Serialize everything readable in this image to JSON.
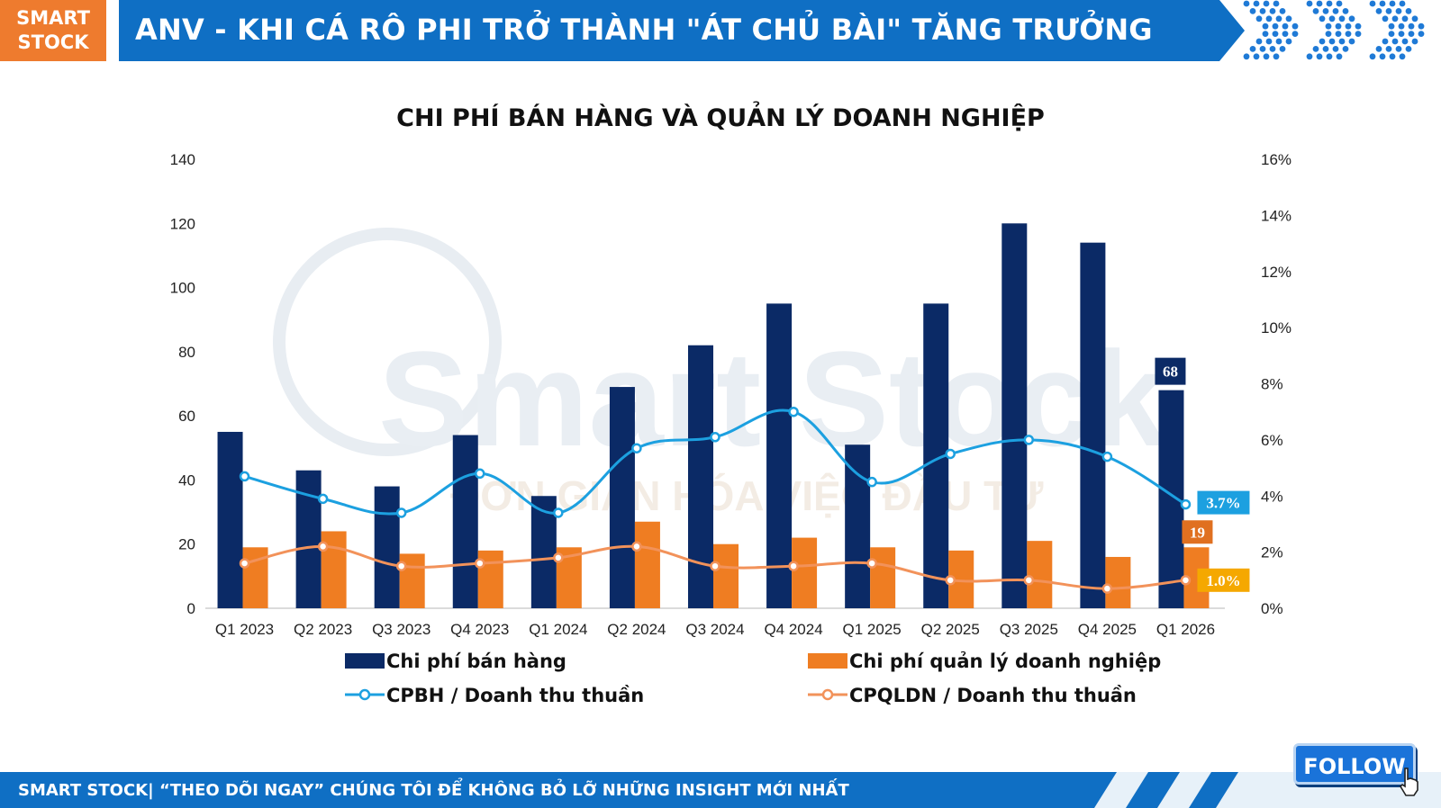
{
  "header": {
    "logo_line1": "SMART",
    "logo_line2": "STOCK",
    "title": "ANV - KHI CÁ RÔ PHI TRỞ THÀNH \"ÁT CHỦ BÀI\" TĂNG TRƯỞNG"
  },
  "watermark": {
    "main": "Smart Stock",
    "tagline": "ĐƠN GIẢN HÓA VIỆC ĐẦU TƯ"
  },
  "chart_data": {
    "type": "bar",
    "title": "CHI PHÍ BÁN HÀNG VÀ QUẢN LÝ DOANH NGHIỆP",
    "categories": [
      "Q1 2023",
      "Q2 2023",
      "Q3 2023",
      "Q4 2023",
      "Q1 2024",
      "Q2 2024",
      "Q3 2024",
      "Q4 2024",
      "Q1 2025",
      "Q2 2025",
      "Q3 2025",
      "Q4 2025",
      "Q1 2026"
    ],
    "series": [
      {
        "name": "Chi phí bán hàng",
        "kind": "bar",
        "axis": "left",
        "color": "#0b2a66",
        "values": [
          55,
          43,
          38,
          54,
          35,
          69,
          82,
          95,
          51,
          95,
          120,
          114,
          68
        ]
      },
      {
        "name": "Chi phí quản lý doanh nghiệp",
        "kind": "bar",
        "axis": "left",
        "color": "#ef7d22",
        "values": [
          19,
          24,
          17,
          18,
          19,
          27,
          20,
          22,
          19,
          18,
          21,
          16,
          19
        ]
      },
      {
        "name": "CPBH / Doanh thu thuần",
        "kind": "line",
        "axis": "right",
        "color": "#1ca0e0",
        "values": [
          4.7,
          3.9,
          3.4,
          4.8,
          3.4,
          5.7,
          6.1,
          7.0,
          4.5,
          5.5,
          6.0,
          5.4,
          3.7
        ]
      },
      {
        "name": "CPQLDN / Doanh thu thuần",
        "kind": "line",
        "axis": "right",
        "color": "#f2925a",
        "values": [
          1.6,
          2.2,
          1.5,
          1.6,
          1.8,
          2.2,
          1.5,
          1.5,
          1.6,
          1.0,
          1.0,
          0.7,
          1.0
        ]
      }
    ],
    "y_left": {
      "min": 0,
      "max": 140,
      "ticks": [
        "0",
        "20",
        "40",
        "60",
        "80",
        "100",
        "120",
        "140"
      ]
    },
    "y_right": {
      "min": 0,
      "max": 16,
      "ticks": [
        "0%",
        "2%",
        "4%",
        "6%",
        "8%",
        "10%",
        "12%",
        "14%",
        "16%"
      ]
    },
    "data_labels": {
      "sell_last": "68",
      "admin_last": "19",
      "sell_ratio_last": "3.7%",
      "admin_ratio_last": "1.0%"
    },
    "label_colors": {
      "sell_last": "#0b2a66",
      "admin_last": "#e07020",
      "sell_ratio_last": "#1ca0e0",
      "admin_ratio_last": "#f5a800"
    },
    "grid": false,
    "legend_position": "bottom"
  },
  "footer": {
    "text": "SMART STOCK| “THEO DÕI NGAY” CHÚNG TÔI ĐỂ KHÔNG BỎ LỠ NHỮNG INSIGHT MỚI NHẤT",
    "follow_label": "FOLLOW"
  },
  "icons": {
    "cursor": "hand-pointer-icon",
    "dots": "chevron-dots-icon"
  }
}
